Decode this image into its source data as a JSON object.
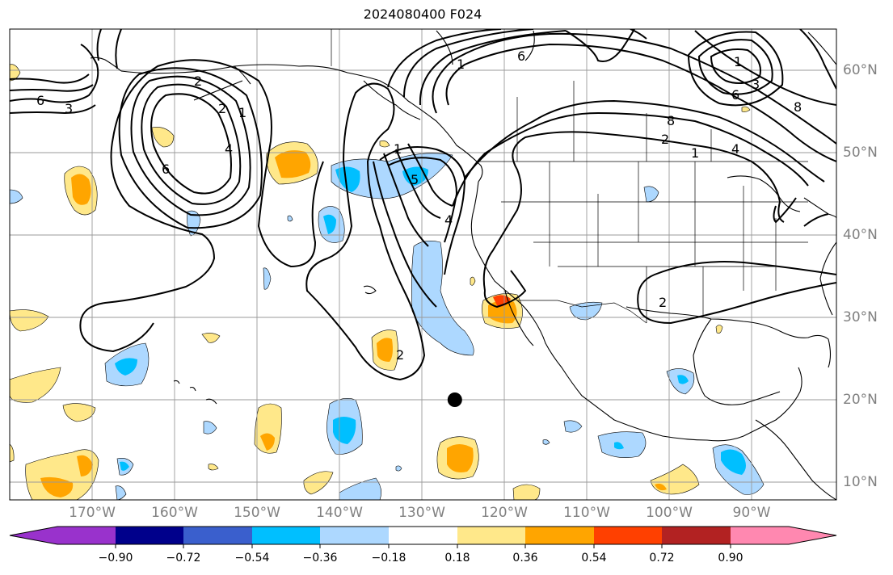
{
  "title": "2024080400 F024",
  "lat_labels": [
    "60°N",
    "50°N",
    "40°N",
    "30°N",
    "20°N",
    "10°N"
  ],
  "lon_labels": [
    "170°W",
    "160°W",
    "150°W",
    "140°W",
    "130°W",
    "120°W",
    "110°W",
    "100°W",
    "90°W"
  ],
  "colorbar": {
    "ticks": [
      "−0.90",
      "−0.72",
      "−0.54",
      "−0.36",
      "−0.18",
      "0.18",
      "0.36",
      "0.54",
      "0.72",
      "0.90"
    ],
    "colors": [
      "#9932cc",
      "#00008b",
      "#3a5fcd",
      "#00bfff",
      "#add8ff",
      "#ffffff",
      "#ffe88a",
      "#ffa500",
      "#ff4000",
      "#b22222",
      "#ff88b0"
    ]
  },
  "contour_labels": [
    "6",
    "3",
    "2",
    "1",
    "4",
    "6",
    "1",
    "5",
    "4",
    "2",
    "6",
    "8",
    "2",
    "1",
    "4",
    "1",
    "3",
    "6",
    "8",
    "1",
    "2",
    "2"
  ],
  "marker": {
    "lat": 20,
    "lon": -126
  }
}
